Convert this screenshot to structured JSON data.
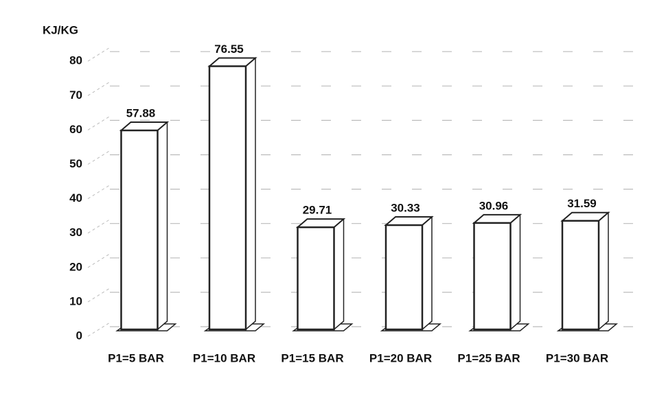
{
  "chart_data": {
    "type": "bar3d",
    "y_axis_label": "KJ/KG",
    "categories": [
      "P1=5 BAR",
      "P1=10 BAR",
      "P1=15 BAR",
      "P1=20 BAR",
      "P1=25 BAR",
      "P1=30 BAR"
    ],
    "values": [
      57.88,
      76.55,
      29.71,
      30.33,
      30.96,
      31.59
    ],
    "value_labels": [
      "57.88",
      "76.55",
      "29.71",
      "30.33",
      "30.96",
      "31.59"
    ],
    "color": "#ffffff",
    "ylim": [
      0,
      80
    ],
    "yticks": [
      0,
      10,
      20,
      30,
      40,
      50,
      60,
      70,
      80
    ],
    "grid": true
  }
}
